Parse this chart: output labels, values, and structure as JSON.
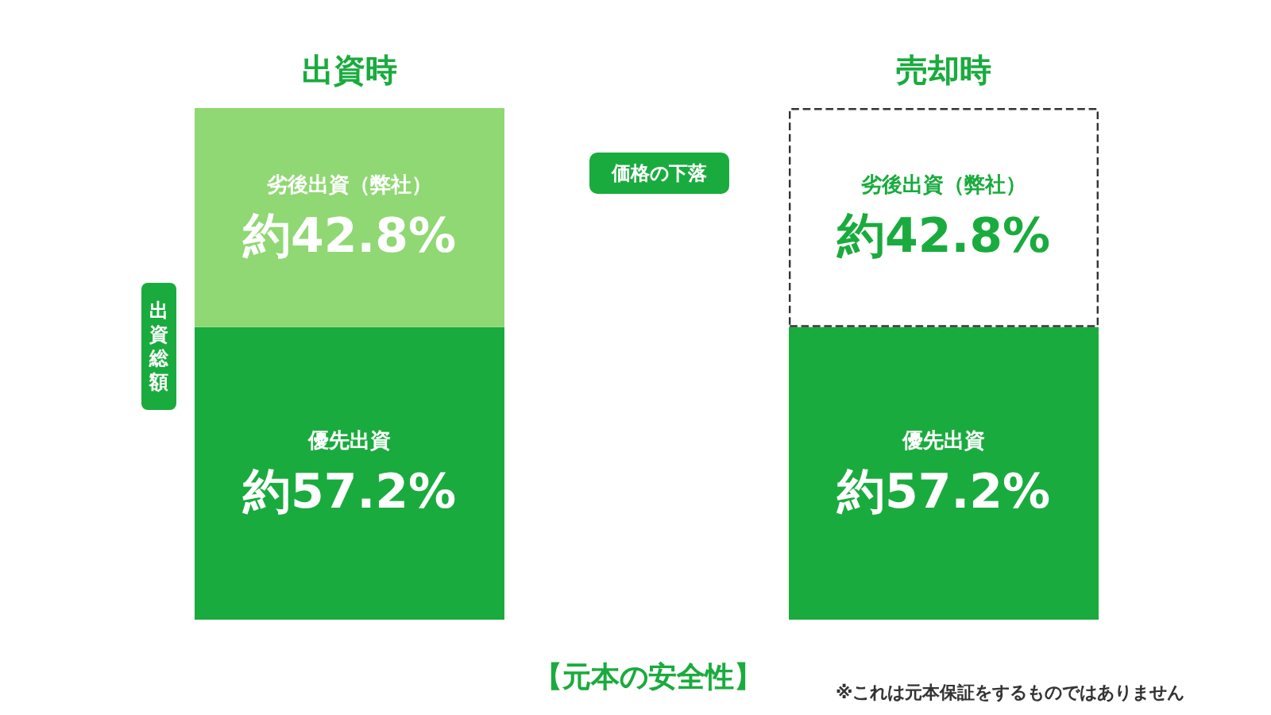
{
  "chart_data": {
    "type": "bar",
    "stacked": true,
    "legend": false,
    "tick_labels": "x",
    "categories": [
      "出資時",
      "売却時"
    ],
    "ylabel": "出資総額",
    "series": [
      {
        "name": "優先出資",
        "colors": [
          "#1aab3e",
          "#1aab3e"
        ],
        "values": [
          57.2,
          57.2
        ],
        "value_labels": [
          "約57.2%",
          "約57.2%"
        ]
      },
      {
        "name": "劣後出資（弊社）",
        "colors": [
          "#8fd873",
          "#ffffff"
        ],
        "values": [
          42.8,
          42.8
        ],
        "value_labels": [
          "約42.8%",
          "約42.8%"
        ]
      }
    ],
    "annotations": [
      "価格の下落",
      "【元本の安全性】",
      "※これは元本保証をするものではありません"
    ]
  }
}
